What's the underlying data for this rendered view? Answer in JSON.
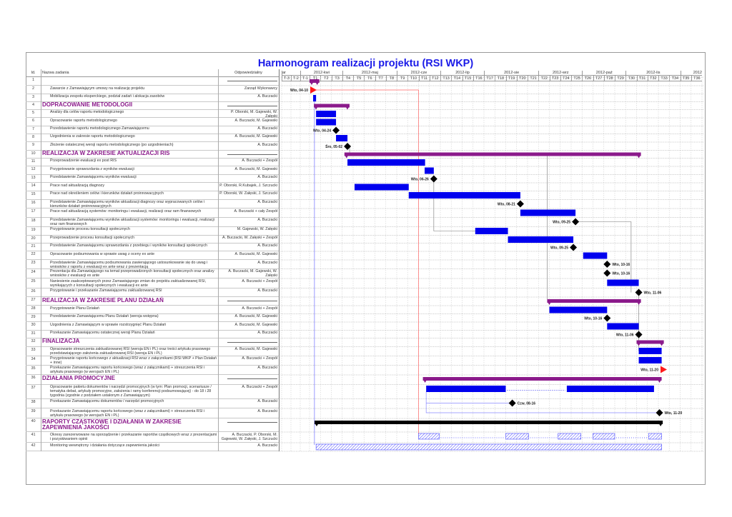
{
  "title": "Harmonogram realizacji projektu (RSI WKP)",
  "header": {
    "id": "Id.",
    "name": "Nazwa zadania",
    "responsible": "Odpowiedzialny"
  },
  "colors": {
    "summary": "#8b1a8b",
    "task": "#0000ee",
    "milestone": "#000000",
    "flag": "#ff1a1a",
    "title": "#1a1ae8"
  },
  "timeline": {
    "months": [
      {
        "label": "ar",
        "weeks": 2
      },
      {
        "label": "2012-kwi",
        "weeks": 4
      },
      {
        "label": "2012-maj",
        "weeks": 5
      },
      {
        "label": "2012-cze",
        "weeks": 4
      },
      {
        "label": "2012-lip",
        "weeks": 4
      },
      {
        "label": "2012-sie",
        "weeks": 5
      },
      {
        "label": "2012-wrz",
        "weeks": 4
      },
      {
        "label": "2012-paź",
        "weeks": 4
      },
      {
        "label": "2012-lis",
        "weeks": 5
      },
      {
        "label": "2012",
        "weeks": 2
      }
    ],
    "weeks": [
      "T-3",
      "T-2",
      "T-1",
      "T1",
      "T2",
      "T3",
      "T4",
      "T5",
      "T6",
      "T7",
      "T8",
      "T9",
      "T10",
      "T11",
      "T12",
      "T13",
      "T14",
      "T15",
      "T16",
      "T17",
      "T18",
      "T19",
      "T20",
      "T21",
      "T22",
      "T23",
      "T24",
      "T25",
      "T26",
      "T27",
      "T28",
      "T29",
      "T30",
      "T31",
      "T32",
      "T33",
      "T34",
      "T35",
      "T36"
    ]
  },
  "tasks": [
    {
      "id": "1",
      "name": "",
      "responsible": "",
      "summary": true
    },
    {
      "id": "2",
      "name": "Zawarcie z Zamawiającym umowy na realizację projektu",
      "responsible": "Zarząd Wykonawcy"
    },
    {
      "id": "3",
      "name": "Mobilizacja zespołu eksperckiego, podział zadań i alokacja zasobów",
      "responsible": "A. Buczacki"
    },
    {
      "id": "4",
      "name": "DOPRACOWANIE METODOLOGII",
      "responsible": "",
      "summary": true
    },
    {
      "id": "5",
      "name": "Analizy dla celów raportu metodologicznego",
      "responsible": "P. Oborski, M. Gajewski, W. Załęski"
    },
    {
      "id": "6",
      "name": "Opracowanie raportu metodologicznego",
      "responsible": "A. Buczacki, M. Gajewski"
    },
    {
      "id": "7",
      "name": "Przedstawienie raportu metodologicznego Zamawiającemu",
      "responsible": "A. Buczacki"
    },
    {
      "id": "8",
      "name": "Uzgodnienia w zakresie raportu metodologicznego",
      "responsible": "A. Buczacki, M. Gajewski"
    },
    {
      "id": "9",
      "name": "Złożenie ostatecznej wersji raportu metodologicznego (po uzgodnieniach)",
      "responsible": "A. Buczacki"
    },
    {
      "id": "10",
      "name": "REALIZACJA W ZAKRESIE AKTUALIZACJI RIS",
      "responsible": "",
      "summary": true
    },
    {
      "id": "11",
      "name": "Przeprowadzenie ewaluacji ex post RIS",
      "responsible": "A. Buczacki + Zespół"
    },
    {
      "id": "12",
      "name": "Przygotowanie sprawozdania z wyników ewaluacji",
      "responsible": "A. Buczacki, M. Gajewski"
    },
    {
      "id": "13",
      "name": "Przedstawienie Zamawiającemu wyników ewaluacji",
      "responsible": "A. Buczacki"
    },
    {
      "id": "14",
      "name": "Prace nad aktualizacją diagnozy",
      "responsible": "P. Oborski, R.Kubajek, J. Szczucki"
    },
    {
      "id": "15",
      "name": "Prace nad określeniem celów i kierunków działań proinnowacyjnych",
      "responsible": "P. Oborski, W. Załęski, J. Szczucki"
    },
    {
      "id": "16",
      "name": "Przedstawienie Zamawiającemu wyników aktualizacji diagnozy oraz wypracowanych celów i kierunków działań proinnowacyjnych",
      "responsible": "A. Buczacki"
    },
    {
      "id": "17",
      "name": "Prace nad aktualizacją systemów: monitoringu i ewaluacji, realizacji oraz ram finansowych",
      "responsible": "A. Buczacki + cały Zespół"
    },
    {
      "id": "18",
      "name": "Przedstawienie Zamawiającemu wyników aktualizacji systemów: monitoringu i ewaluacji, realizacji oraz ram finansowych",
      "responsible": "A. Buczacki"
    },
    {
      "id": "19",
      "name": "Przygotowanie procesu konsultacji społecznych",
      "responsible": "M. Gajewski, W. Załęski"
    },
    {
      "id": "20",
      "name": "Przeprowadzenie procesu konsultacji społecznych",
      "responsible": "A. Buczacki, W. Załęski + Zespół"
    },
    {
      "id": "21",
      "name": "Przedstawienie Zamawiającemu  sprawozdania z przebiegu i wyników konsultacji społecznych",
      "responsible": "A. Buczacki"
    },
    {
      "id": "22",
      "name": "Opracowanie podsumowania w sprawie uwag z oceny ex ante",
      "responsible": "A. Buczacki, M. Gajewski"
    },
    {
      "id": "23",
      "name": "Przedstawienie Zamawiającemu podsumowania zawierającego ustosunkowanie się do uwag i wniosków z raportu z ewaluacji ex ante wraz z prezentacją",
      "responsible": "A. Buczacki"
    },
    {
      "id": "24",
      "name": "Prezentacja dla Zamawiającego na temat przeprowadzonych konsultacji społecznych oraz analizy wniosków z ewaluacji ex ante",
      "responsible": "A. Buczacki, M. Gajewski, W. Załęski"
    },
    {
      "id": "25",
      "name": "Naniesienie zaakceptowanych przez Zamawiającego zmian do projektu zaktualizowanej RSI, wynikających z konsultacji społecznych i ewaluacji ex ante",
      "responsible": "A. Buczacki + Zespół"
    },
    {
      "id": "26",
      "name": "Przygotowanie i przekazanie Zamawiającemu zaktualizowanej RSI",
      "responsible": "A. Buczacki"
    },
    {
      "id": "27",
      "name": "REALIZACJA W ZAKRESIE PLANU DZIAŁAŃ",
      "responsible": "",
      "summary": true
    },
    {
      "id": "28",
      "name": "Przygotowanie Planu Działań",
      "responsible": "A. Buczacki + Zespół"
    },
    {
      "id": "29",
      "name": "Przedstawienie Zamawiającemu Planu Działań (wersja wstępna)",
      "responsible": "A. Buczacki, M. Gajewski"
    },
    {
      "id": "30",
      "name": "Uzgodnienia z Zamawiającym w sprawie rozstrzygnięć Planu Działań",
      "responsible": "A. Buczacki, M. Gajewski"
    },
    {
      "id": "31",
      "name": "Przekazanie Zamawiającemu ostatecznej wersji Planu Działań",
      "responsible": "A. Buczacki"
    },
    {
      "id": "32",
      "name": "FINALIZACJA",
      "responsible": "",
      "summary": true
    },
    {
      "id": "33",
      "name": "Opracowanie streszczenia zaktualizowanej RSI (wersja EN i PL) oraz treści artykułu prasowego przedstawiającego założenia zaktualizowanej RSI (wersja EN i PL)",
      "responsible": "A. Buczacki, M. Gajewski"
    },
    {
      "id": "34",
      "name": "Przygotowanie raportu końcowego z aktualizacji RSI wraz z załącznikami (RSI WKP + Plan Działań + inne)",
      "responsible": "A. Buczacki + Zespół"
    },
    {
      "id": "35",
      "name": "Przekazanie Zamawiającemu raportu końcowego (wraz z załącznikami) + streszczenia RSI i artykułu prasowego (w wersjach EN i PL)",
      "responsible": "A. Buczacki"
    },
    {
      "id": "36",
      "name": "DZIAŁANIA PROMOCYJNE",
      "responsible": "",
      "summary": true
    },
    {
      "id": "37",
      "name": "Opracowanie pakietu dokumentów i narzędzi promocyjnych (w tym: Plan promocji, scenariusze / tematyka debat, artykuły promocyjne, założenia i ramy konferencji podsumowującej) - do 18 i 28 tygodnia  (zgodnie z podziałem ustalonym z Zamawiającym)",
      "responsible": "A. Buczacki + Zespół"
    },
    {
      "id": "38",
      "name": "Przekazanie Zamawiającemu dokumentów / narzędzi promocyjnych",
      "responsible": "A. Buczacki"
    },
    {
      "id": "39",
      "name": "Przekazanie Zamawiającemu raportu końcowego (wraz z załącznikami) + streszczenia RSI i artykułu prasowego (w wersjach EN i PL)",
      "responsible": "A. Buczacki"
    },
    {
      "id": "40",
      "name": "RAPORTY CZĄSTKOWE I DZIAŁANIA W ZAKRESIE ZAPEWNIENIA JAKOŚCI",
      "responsible": "",
      "summary": true
    },
    {
      "id": "41",
      "name": "Okresy zarezerwowane na sporządzenie i przekazanie raportów cząstkowych wraz z prezentacjami i pozyskiwaniem opinii",
      "responsible": "A. Buczacki, P. Oborski, M. Gajewski, W. Załęski, J. Szczucki"
    },
    {
      "id": "42",
      "name": "Monitoring wewnętrzny i działania dotyczące zapewnienia jakości",
      "responsible": "A. Buczacki"
    }
  ],
  "chart_data": {
    "type": "gantt",
    "time_unit": "week (0 = start of T1)",
    "xlim": [
      -3,
      36
    ],
    "items": [
      {
        "row": 1,
        "kind": "summary",
        "segments": [
          [
            0,
            0.9
          ]
        ]
      },
      {
        "row": 2,
        "kind": "flag",
        "at": 0.33,
        "label": "Wto, 04-10",
        "label_side": "left"
      },
      {
        "row": 3,
        "kind": "task",
        "segments": [
          [
            0.33,
            0.6
          ]
        ]
      },
      {
        "row": 4,
        "kind": "summary",
        "segments": [
          [
            0.4,
            3.67
          ]
        ]
      },
      {
        "row": 5,
        "kind": "task",
        "segments": [
          [
            0.6,
            2.43
          ]
        ]
      },
      {
        "row": 6,
        "kind": "task",
        "segments": [
          [
            0.6,
            2.43
          ]
        ]
      },
      {
        "row": 7,
        "kind": "milestone",
        "at": 2.43,
        "label": "Wto, 04-24",
        "label_side": "left"
      },
      {
        "row": 8,
        "kind": "task",
        "segments": [
          [
            2.43,
            3.48
          ]
        ]
      },
      {
        "row": 9,
        "kind": "milestone",
        "at": 3.48,
        "label": "Śro, 05-02",
        "label_side": "left"
      },
      {
        "row": 10,
        "kind": "summary",
        "segments": [
          [
            3.2,
            30.4
          ]
        ]
      },
      {
        "row": 11,
        "kind": "task",
        "segments": [
          [
            3.48,
            10.6
          ]
        ]
      },
      {
        "row": 12,
        "kind": "task",
        "segments": [
          [
            10.56,
            11.4
          ]
        ]
      },
      {
        "row": 13,
        "kind": "milestone",
        "at": 11.4,
        "label": "Wto, 06-26",
        "label_side": "left"
      },
      {
        "row": 14,
        "kind": "task",
        "segments": [
          [
            4.13,
            9.1
          ]
        ]
      },
      {
        "row": 15,
        "kind": "task",
        "segments": [
          [
            9.1,
            19.34
          ]
        ]
      },
      {
        "row": 16,
        "kind": "milestone",
        "at": 19.34,
        "label": "Wto, 08-21",
        "label_side": "left"
      },
      {
        "row": 17,
        "kind": "task",
        "segments": [
          [
            19.34,
            24.4
          ]
        ]
      },
      {
        "row": 18,
        "kind": "milestone",
        "at": 24.4,
        "label": "Wto, 09-25",
        "label_side": "left"
      },
      {
        "row": 19,
        "kind": "task",
        "segments": [
          [
            15.2,
            18.2
          ]
        ]
      },
      {
        "row": 20,
        "kind": "task",
        "segments": [
          [
            18.2,
            24.2
          ]
        ]
      },
      {
        "row": 21,
        "kind": "milestone",
        "at": 24.2,
        "label": "Wto, 09-25",
        "label_side": "left"
      },
      {
        "row": 22,
        "kind": "task",
        "segments": [
          [
            25.1,
            27.3
          ]
        ]
      },
      {
        "row": 23,
        "kind": "milestone",
        "at": 27.3,
        "label": "Wto, 10-16",
        "label_side": "right"
      },
      {
        "row": 24,
        "kind": "milestone",
        "at": 27.3,
        "label": "Wto, 10-16",
        "label_side": "right"
      },
      {
        "row": 25,
        "kind": "task",
        "segments": [
          [
            27.3,
            30.2
          ]
        ]
      },
      {
        "row": 26,
        "kind": "milestone",
        "at": 30.2,
        "label": "Wto, 11-06",
        "label_side": "right"
      },
      {
        "row": 27,
        "kind": "summary",
        "segments": [
          [
            21.8,
            30.4
          ]
        ]
      },
      {
        "row": 28,
        "kind": "task",
        "segments": [
          [
            22.0,
            27.3
          ]
        ]
      },
      {
        "row": 29,
        "kind": "milestone",
        "at": 27.3,
        "label": "Wto, 10-16",
        "label_side": "left"
      },
      {
        "row": 30,
        "kind": "task",
        "segments": [
          [
            27.3,
            30.2
          ]
        ]
      },
      {
        "row": 31,
        "kind": "milestone",
        "at": 30.2,
        "label": "Wto, 11-06",
        "label_side": "left"
      },
      {
        "row": 32,
        "kind": "summary",
        "segments": [
          [
            30.0,
            32.5
          ]
        ]
      },
      {
        "row": 33,
        "kind": "task",
        "segments": [
          [
            30.2,
            32.3
          ]
        ]
      },
      {
        "row": 34,
        "kind": "task",
        "segments": [
          [
            30.2,
            32.3
          ]
        ]
      },
      {
        "row": 35,
        "kind": "flag",
        "at": 32.46,
        "label": "Wto, 11-20",
        "label_side": "left"
      },
      {
        "row": 36,
        "kind": "summary",
        "segments": [
          [
            10.4,
            32.3
          ]
        ]
      },
      {
        "row": 37,
        "kind": "task",
        "segments": [
          [
            10.7,
            18.0
          ],
          [
            23.6,
            31.6
          ]
        ],
        "split": true
      },
      {
        "row": 38,
        "kind": "milestone",
        "at": 18.6,
        "label": "Czw, 08-16",
        "label_side": "right"
      },
      {
        "row": 39,
        "kind": "milestone",
        "at": 32.1,
        "label": "Wto, 11-20",
        "label_side": "right"
      },
      {
        "row": 40,
        "kind": "summary-black",
        "segments": [
          [
            0.46,
            32.4
          ]
        ]
      },
      {
        "row": 41,
        "kind": "hatched",
        "segments": [
          [
            10.0,
            11.9
          ],
          [
            18.0,
            20.1
          ],
          [
            22.8,
            24.9
          ],
          [
            26.0,
            28.0
          ],
          [
            31.1,
            32.3
          ]
        ],
        "split": true
      },
      {
        "row": 42,
        "kind": "hatched",
        "segments": [
          [
            0.6,
            32.3
          ]
        ]
      }
    ]
  }
}
